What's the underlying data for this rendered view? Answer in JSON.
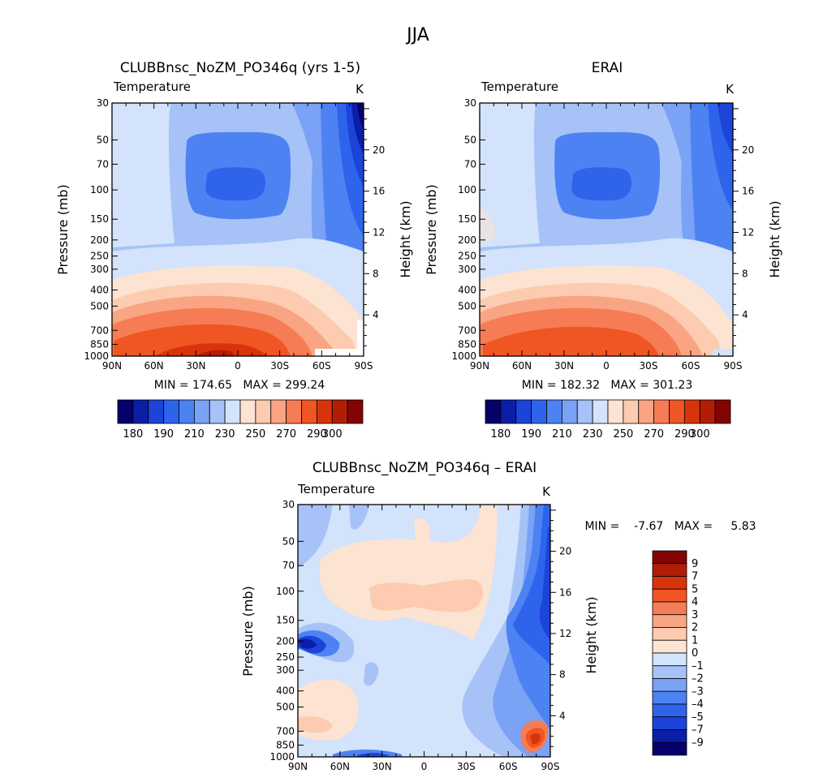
{
  "figure_title": "JJA",
  "chart_data": [
    {
      "type": "heatmap",
      "title": "CLUBBnsc_NoZM_PO346q (yrs 1-5)",
      "subtitle": "Temperature",
      "units": "K",
      "ylabel": "Pressure (mb)",
      "ylabel_right": "Height (km)",
      "x_ticks": [
        "90N",
        "60N",
        "30N",
        "0",
        "30S",
        "60S",
        "90S"
      ],
      "y_ticks": [
        "30",
        "50",
        "70",
        "100",
        "150",
        "200",
        "250",
        "300",
        "400",
        "500",
        "700",
        "850",
        "1000"
      ],
      "y_ticks_right": [
        "20",
        "16",
        "12",
        "8",
        "4"
      ],
      "stats": "MIN = 174.65   MAX = 299.24",
      "colorbar": {
        "labels": [
          "180",
          "190",
          "210",
          "230",
          "250",
          "270",
          "290",
          "300"
        ],
        "colors": [
          "#08006b",
          "#0a1ea8",
          "#1c44d8",
          "#2e63ec",
          "#4d82f2",
          "#7aa2f5",
          "#a6c2f7",
          "#d2e3fb",
          "#fde3d2",
          "#fccbb0",
          "#f9a583",
          "#f67c55",
          "#f05524",
          "#d8340c",
          "#b21d06",
          "#820504"
        ]
      },
      "ylim": [
        1000,
        30
      ],
      "xlim": [
        "90N",
        "90S"
      ]
    },
    {
      "type": "heatmap",
      "title": "ERAI",
      "subtitle": "Temperature",
      "units": "K",
      "ylabel": "Pressure (mb)",
      "ylabel_right": "Height (km)",
      "x_ticks": [
        "90N",
        "60N",
        "30N",
        "0",
        "30S",
        "60S",
        "90S"
      ],
      "y_ticks": [
        "30",
        "50",
        "70",
        "100",
        "150",
        "200",
        "250",
        "300",
        "400",
        "500",
        "700",
        "850",
        "1000"
      ],
      "y_ticks_right": [
        "20",
        "16",
        "12",
        "8",
        "4"
      ],
      "stats": "MIN = 182.32   MAX = 301.23",
      "colorbar": {
        "labels": [
          "180",
          "190",
          "210",
          "230",
          "250",
          "270",
          "290",
          "300"
        ]
      },
      "ylim": [
        1000,
        30
      ],
      "xlim": [
        "90N",
        "90S"
      ]
    },
    {
      "type": "heatmap",
      "title": "CLUBBnsc_NoZM_PO346q – ERAI",
      "subtitle": "Temperature",
      "units": "K",
      "ylabel": "Pressure (mb)",
      "ylabel_right": "Height (km)",
      "x_ticks": [
        "90N",
        "60N",
        "30N",
        "0",
        "30S",
        "60S",
        "90S"
      ],
      "y_ticks": [
        "30",
        "50",
        "70",
        "100",
        "150",
        "200",
        "250",
        "300",
        "400",
        "500",
        "700",
        "850",
        "1000"
      ],
      "y_ticks_right": [
        "20",
        "16",
        "12",
        "8",
        "4"
      ],
      "stats": "MIN =    -7.67   MAX =     5.83",
      "colorbar": {
        "labels": [
          "9",
          "7",
          "5",
          "4",
          "3",
          "2",
          "1",
          "0",
          "–1",
          "–2",
          "–3",
          "–4",
          "–5",
          "–7",
          "–9"
        ],
        "colors": [
          "#820504",
          "#b21d06",
          "#d8340c",
          "#f05524",
          "#f67c55",
          "#f9a583",
          "#fccbb0",
          "#fde3d2",
          "#d2e3fb",
          "#a6c2f7",
          "#7aa2f5",
          "#4d82f2",
          "#2e63ec",
          "#1c44d8",
          "#0a1ea8",
          "#08006b"
        ]
      },
      "ylim": [
        1000,
        30
      ],
      "xlim": [
        "90N",
        "90S"
      ]
    }
  ]
}
